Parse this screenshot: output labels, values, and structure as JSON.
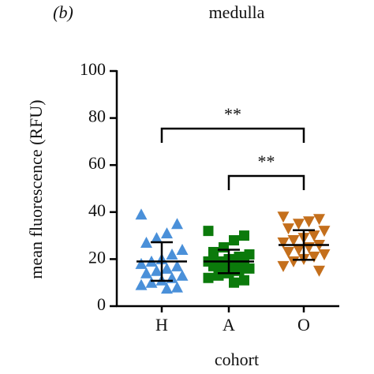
{
  "chart_data": {
    "type": "scatter-dot",
    "panel_label": "(b)",
    "title": "medulla",
    "y_label": "mean fluorescence (RFU)",
    "x_label": "cohort",
    "categories": [
      "H",
      "A",
      "O"
    ],
    "groups": [
      {
        "color": "#4a90d9",
        "marker": "triangle-up",
        "mean": 19,
        "sd": 8.2,
        "values": [
          39,
          35,
          31,
          29,
          27,
          24,
          22,
          20,
          19,
          18,
          17,
          16,
          15,
          14,
          13,
          12,
          11,
          10,
          9,
          8,
          7.5
        ]
      },
      {
        "color": "#0b7a0b",
        "marker": "square",
        "mean": 19,
        "sd": 5,
        "values": [
          32,
          30,
          28,
          25,
          23,
          22,
          21,
          20,
          19,
          19,
          18,
          18,
          17,
          17,
          16,
          15,
          14,
          13,
          12,
          11,
          10
        ]
      },
      {
        "color": "#c46f1c",
        "marker": "triangle-down",
        "mean": 26,
        "sd": 6.3,
        "values": [
          38,
          37,
          36,
          35,
          33,
          32,
          30,
          29,
          28,
          27,
          26,
          25,
          24,
          23,
          22,
          21,
          20,
          19,
          17,
          15
        ]
      }
    ],
    "annotations": [
      {
        "text": "**",
        "from": "H",
        "to": "O"
      },
      {
        "text": "**",
        "from": "A",
        "to": "O"
      }
    ],
    "ylim": [
      0,
      100
    ],
    "yticks": [
      0,
      20,
      40,
      60,
      80,
      100
    ],
    "grid": false
  }
}
